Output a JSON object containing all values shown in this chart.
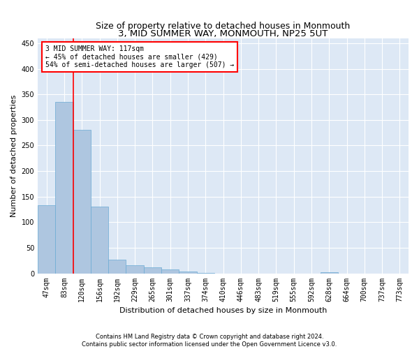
{
  "title": "3, MID SUMMER WAY, MONMOUTH, NP25 5UT",
  "subtitle": "Size of property relative to detached houses in Monmouth",
  "xlabel": "Distribution of detached houses by size in Monmouth",
  "ylabel": "Number of detached properties",
  "bar_labels": [
    "47sqm",
    "83sqm",
    "120sqm",
    "156sqm",
    "192sqm",
    "229sqm",
    "265sqm",
    "301sqm",
    "337sqm",
    "374sqm",
    "410sqm",
    "446sqm",
    "483sqm",
    "519sqm",
    "555sqm",
    "592sqm",
    "628sqm",
    "664sqm",
    "700sqm",
    "737sqm",
    "773sqm"
  ],
  "bar_values": [
    133,
    335,
    280,
    131,
    27,
    16,
    11,
    7,
    4,
    1,
    0,
    0,
    0,
    0,
    0,
    0,
    2,
    0,
    0,
    0,
    0
  ],
  "bar_color": "#aec6e0",
  "bar_edge_color": "#6aaad4",
  "annotation_text": "3 MID SUMMER WAY: 117sqm\n← 45% of detached houses are smaller (429)\n54% of semi-detached houses are larger (507) →",
  "annotation_box_color": "white",
  "annotation_border_color": "red",
  "vline_color": "red",
  "footer_line1": "Contains HM Land Registry data © Crown copyright and database right 2024.",
  "footer_line2": "Contains public sector information licensed under the Open Government Licence v3.0.",
  "ylim": [
    0,
    460
  ],
  "yticks": [
    0,
    50,
    100,
    150,
    200,
    250,
    300,
    350,
    400,
    450
  ],
  "background_color": "#dde8f5",
  "grid_color": "white",
  "title_fontsize": 9.5,
  "subtitle_fontsize": 9,
  "axis_label_fontsize": 8,
  "tick_fontsize": 7,
  "annotation_fontsize": 7,
  "footer_fontsize": 6
}
